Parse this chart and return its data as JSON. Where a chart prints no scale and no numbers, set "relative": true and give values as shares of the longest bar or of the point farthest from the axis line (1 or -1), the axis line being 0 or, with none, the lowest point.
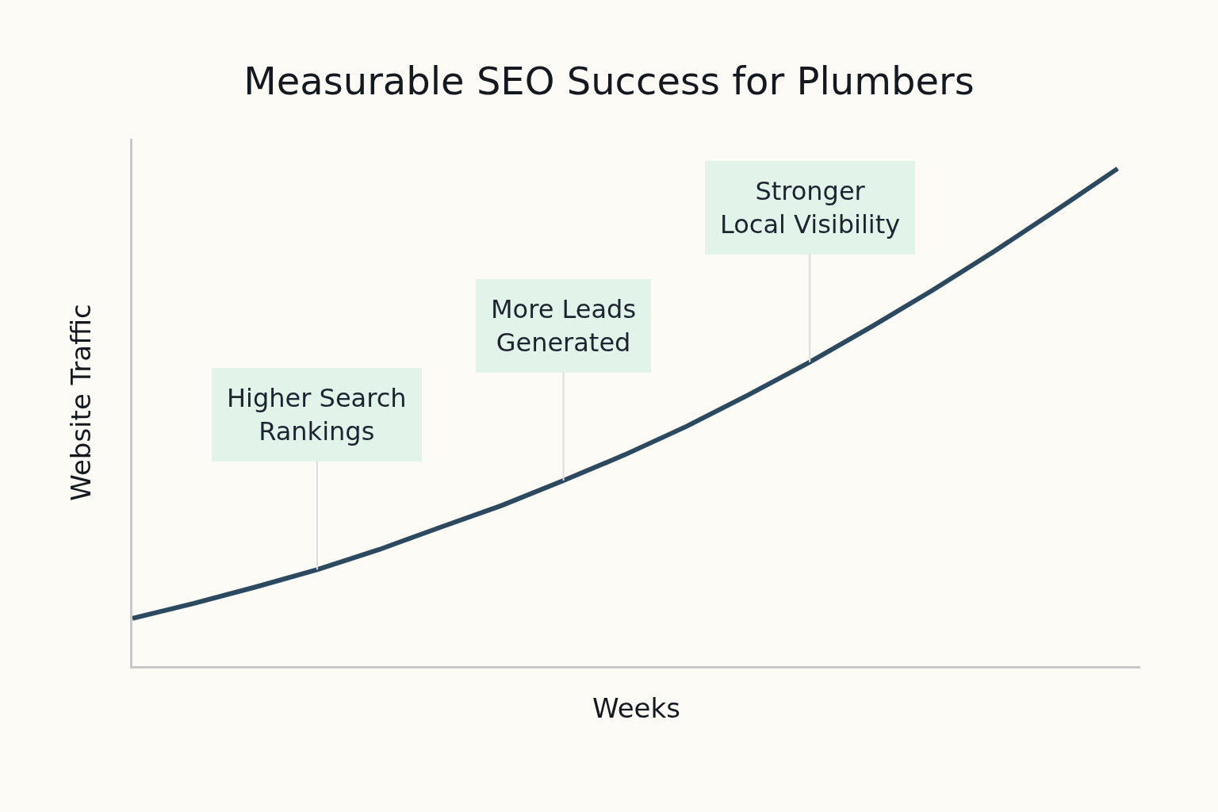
{
  "chart_data": {
    "type": "line",
    "title": "Measurable SEO Success for Plumbers",
    "xlabel": "Weeks",
    "ylabel": "Website Traffic",
    "relative": true,
    "categories": [
      null,
      null,
      null,
      null,
      null,
      null,
      null,
      null,
      null,
      null,
      null,
      null,
      null,
      null,
      null,
      null,
      null
    ],
    "series": [
      {
        "color": "#2b4a60",
        "values": [
          0.096,
          0.126,
          0.159,
          0.194,
          0.234,
          0.279,
          0.323,
          0.373,
          0.425,
          0.482,
          0.545,
          0.611,
          0.682,
          0.756,
          0.834,
          0.916,
          1
        ]
      }
    ],
    "line_style": "solid",
    "grid": false,
    "annotations": [
      "Higher Search\nRankings",
      "More Leads\nGenerated",
      "Stronger\nLocal Visibility"
    ]
  }
}
